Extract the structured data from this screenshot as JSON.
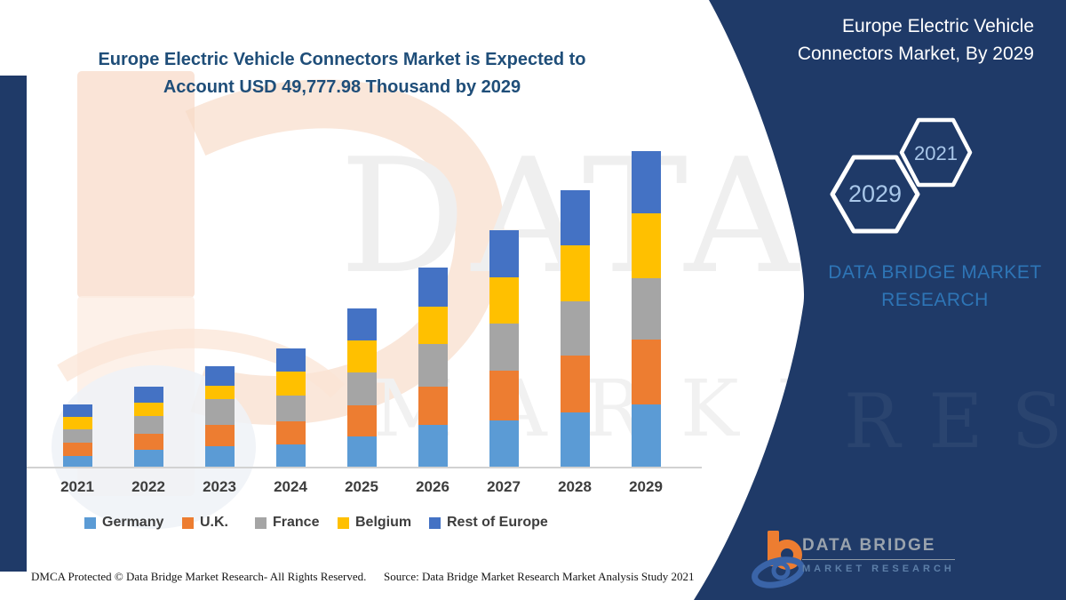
{
  "title": {
    "line1": "Europe Electric Vehicle Connectors Market is Expected to",
    "line2": "Account USD 49,777.98 Thousand by 2029"
  },
  "chart_data": {
    "type": "bar",
    "stacked": true,
    "title": "Europe Electric Vehicle Connectors Market is Expected to Account USD 49,777.98 Thousand by 2029",
    "unit": "USD Thousand",
    "categories": [
      "2021",
      "2022",
      "2023",
      "2024",
      "2025",
      "2026",
      "2027",
      "2028",
      "2029"
    ],
    "series": [
      {
        "name": "Germany",
        "color": "#5B9BD5",
        "values": [
          1880,
          2760,
          3400,
          3680,
          4940,
          6680,
          7460,
          8720,
          9992
        ]
      },
      {
        "name": "U.K.",
        "color": "#ED7D31",
        "values": [
          2100,
          2620,
          3260,
          3600,
          4900,
          6060,
          7800,
          8860,
          10174
        ]
      },
      {
        "name": "France",
        "color": "#A5A5A5",
        "values": [
          2100,
          2800,
          4060,
          4020,
          5140,
          6680,
          7380,
          8630,
          9698
        ]
      },
      {
        "name": "Belgium",
        "color": "#FFC000",
        "values": [
          1860,
          2060,
          2140,
          3780,
          5040,
          5920,
          7320,
          8770,
          10118
        ]
      },
      {
        "name": "Rest of Europe",
        "color": "#4472C4",
        "values": [
          1960,
          2520,
          3040,
          3680,
          5000,
          6200,
          7380,
          8720,
          9796
        ]
      }
    ],
    "totals": [
      9900,
      12760,
      15900,
      18760,
      25020,
      31540,
      37340,
      43700,
      49778
    ],
    "stated_total_2029": 49777.98,
    "legend_position": "bottom",
    "y_axis_visible": false
  },
  "panel": {
    "title_line1": "Europe Electric Vehicle",
    "title_line2": "Connectors Market, By 2029",
    "hex_big": "2029",
    "hex_small": "2021",
    "brand_line1": "DATA BRIDGE MARKET",
    "brand_line2": "RESEARCH"
  },
  "logo": {
    "wordmark": "DATA BRIDGE",
    "subtext": "MARKET RESEARCH"
  },
  "footer": {
    "dmca": "DMCA Protected © Data Bridge Market Research- All Rights Reserved.",
    "source": "Source: Data Bridge Market Research Market Analysis Study 2021"
  },
  "watermark": {
    "line1": "DATA BRIDGE",
    "line2": "MARKET RESEARCH",
    "panel_ghost": "RESEARCH"
  },
  "colors": {
    "navy": "#1F3A68",
    "title_blue": "#1F4E79",
    "brand_blue": "#2E75B6",
    "hex_text": "#A9C7E9"
  }
}
